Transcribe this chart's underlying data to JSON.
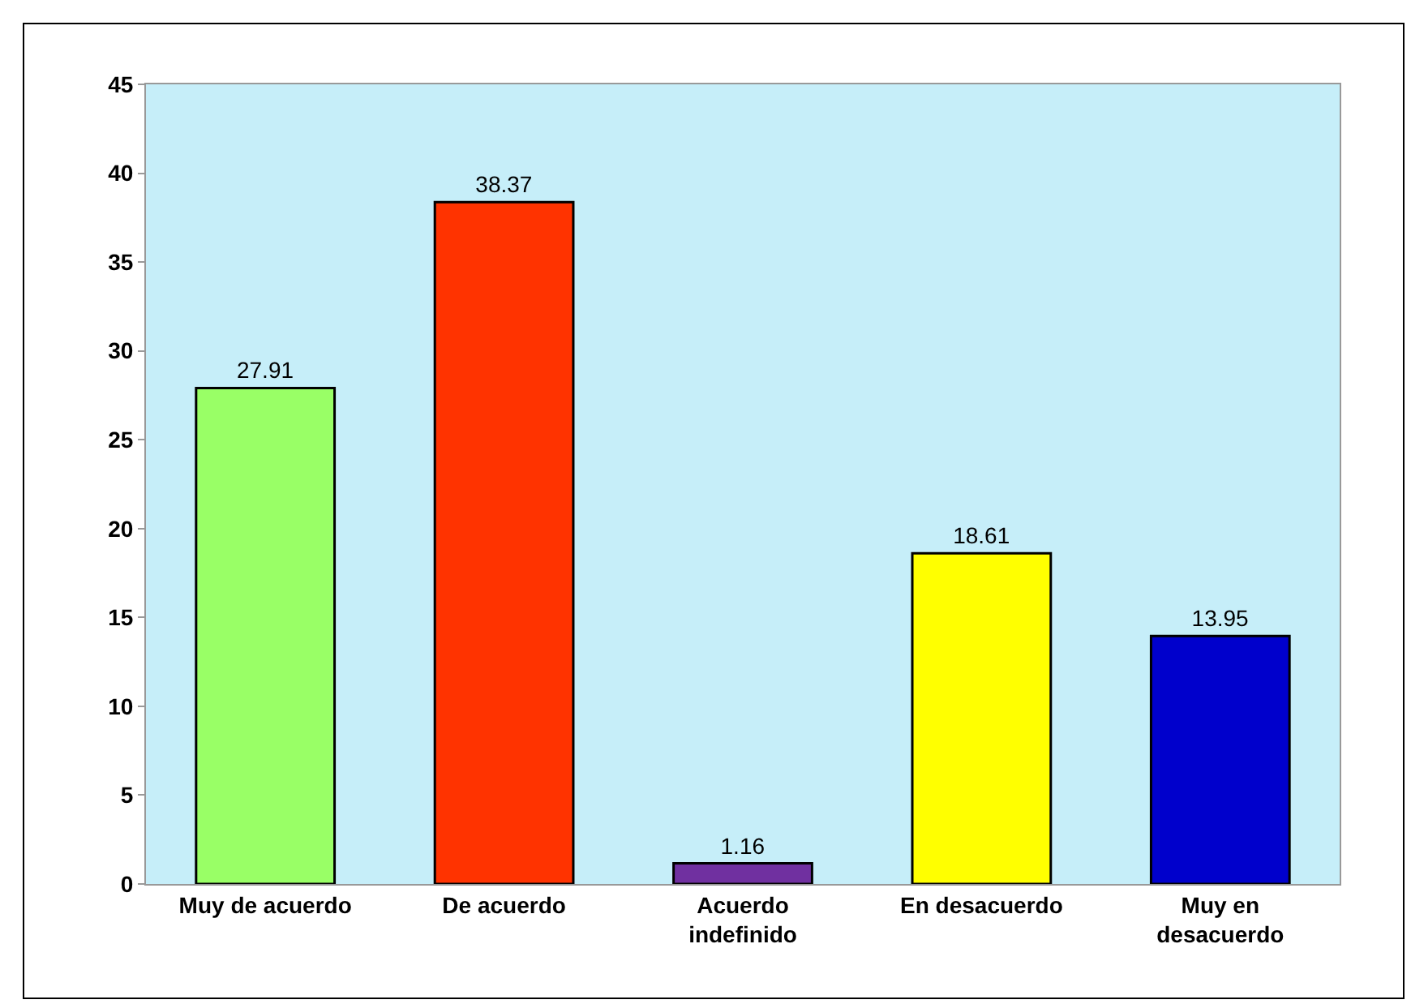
{
  "chart_data": {
    "type": "bar",
    "categories": [
      "Muy de acuerdo",
      "De acuerdo",
      "Acuerdo indefinido",
      "En desacuerdo",
      "Muy en desacuerdo"
    ],
    "values": [
      27.91,
      38.37,
      1.16,
      18.61,
      13.95
    ],
    "colors": [
      "#99ff66",
      "#ff3300",
      "#7030a0",
      "#ffff00",
      "#0000cc"
    ],
    "ylim": [
      0,
      45
    ],
    "yticks": [
      0,
      5,
      10,
      15,
      20,
      25,
      30,
      35,
      40,
      45
    ],
    "grid": false,
    "data_labels": true
  }
}
